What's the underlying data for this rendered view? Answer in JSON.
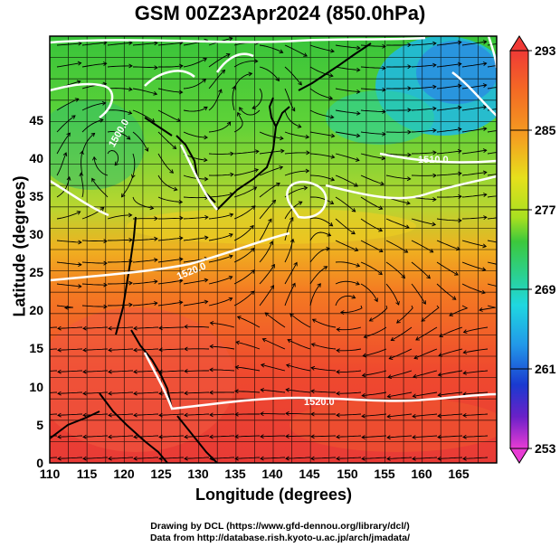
{
  "title": "GSM 00Z23Apr2024 (850.0hPa)",
  "axes": {
    "xlabel": "Longitude (degrees)",
    "ylabel": "Latitude  (degrees)",
    "x_ticks": [
      "110",
      "115",
      "120",
      "125",
      "130",
      "135",
      "140",
      "145",
      "150",
      "155",
      "160",
      "165"
    ],
    "y_ticks": [
      "0",
      "5",
      "10",
      "15",
      "20",
      "25",
      "30",
      "35",
      "40",
      "45"
    ]
  },
  "colorbar": {
    "ticks": [
      "293",
      "285",
      "277",
      "269",
      "261",
      "253"
    ]
  },
  "contour_labels": [
    "1520.0",
    "1510.0",
    "1520.0",
    "1500.0"
  ],
  "credits": {
    "line1": "Drawing by DCL (https://www.gfd-dennou.org/library/dcl/)",
    "line2": "Data from http://database.rish.kyoto-u.ac.jp/arch/jmadata/"
  },
  "chart_data": {
    "type": "heatmap",
    "variable": "temperature with streamlines",
    "xlim": [
      110,
      170
    ],
    "ylim": [
      0,
      50
    ],
    "colorbar_range": [
      253,
      293
    ],
    "colors": {
      "warm": "#e8453c",
      "orange": "#f48a1f",
      "yellow": "#f2d21c",
      "green": "#3cc83c",
      "cyan": "#1fd7e0",
      "blue": "#1a6fd8",
      "magenta": "#e83cd4"
    }
  }
}
